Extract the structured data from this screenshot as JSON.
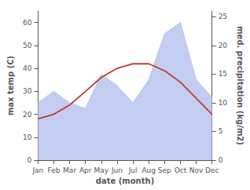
{
  "chart_data": {
    "type": "line",
    "categories": [
      "Jan",
      "Feb",
      "Mar",
      "Apr",
      "May",
      "Jun",
      "Jul",
      "Aug",
      "Sep",
      "Oct",
      "Nov",
      "Dec"
    ],
    "series": [
      {
        "type": "area",
        "color": "#b8c4f0",
        "axis": "y2",
        "values": [
          10,
          12,
          10,
          9,
          15,
          13,
          10,
          14,
          22,
          24,
          14,
          11
        ]
      },
      {
        "type": "line",
        "color": "#c0392b",
        "values": [
          18,
          20,
          24,
          30,
          36,
          40,
          42,
          42,
          39,
          34,
          27,
          20
        ]
      }
    ],
    "xlabel": "date (month)",
    "ylabel": "max temp (C)",
    "y2label": "med. precipitation (kg/m2)",
    "ylim": [
      0,
      65
    ],
    "yticks": [
      0,
      10,
      20,
      30,
      40,
      50,
      60
    ],
    "y2lim": [
      0,
      26
    ],
    "y2ticks": [
      0,
      5,
      10,
      15,
      20,
      25
    ],
    "grid": false
  }
}
